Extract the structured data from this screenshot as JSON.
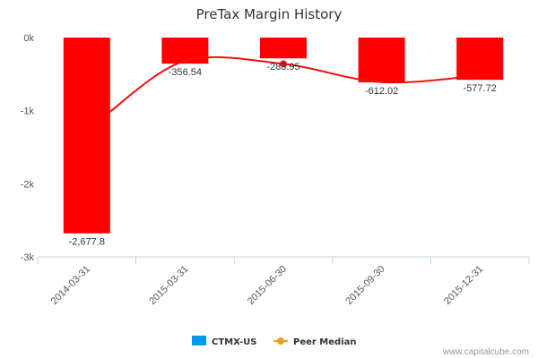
{
  "chart_data": {
    "type": "bar",
    "title": "PreTax Margin History",
    "categories": [
      "2014-03-31",
      "2015-03-31",
      "2015-06-30",
      "2015-09-30",
      "2015-12-31"
    ],
    "series": [
      {
        "name": "CTMX-US",
        "type": "bar",
        "values": [
          -2677.8,
          -356.54,
          -283.95,
          -612.02,
          -577.72
        ],
        "data_labels": [
          "-2,677.8",
          "-356.54",
          "-283.95",
          "-612.02",
          "-577.72"
        ],
        "color": "#ff0000",
        "legend_color": "#0099ee"
      },
      {
        "name": "Peer Median",
        "type": "line",
        "values": [
          -1050,
          -320,
          -360,
          -610,
          -520
        ],
        "color": "#ee1111",
        "legend_color": "#f0a020"
      }
    ],
    "y_ticks": [
      {
        "value": 0,
        "label": "0k"
      },
      {
        "value": -1000,
        "label": "-1k"
      },
      {
        "value": -2000,
        "label": "-2k"
      },
      {
        "value": -3000,
        "label": "-3k"
      }
    ],
    "ylim": [
      -3000,
      0
    ],
    "grid": false,
    "legend_position": "bottom-center"
  },
  "credit": "www.capitalcube.com"
}
